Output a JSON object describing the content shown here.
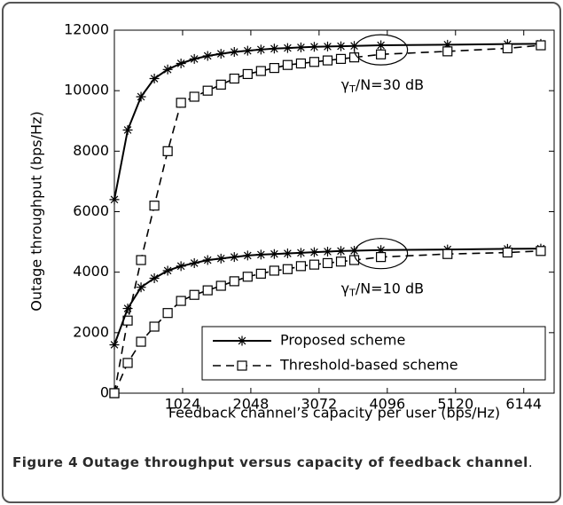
{
  "chart_data": {
    "type": "line",
    "xlabel": "Feedback channel’s capacity per user (bps/Hz)",
    "ylabel": "Outage throughput (bps/Hz)",
    "x": [
      0,
      200,
      400,
      600,
      800,
      1000,
      1200,
      1400,
      1600,
      1800,
      2000,
      2200,
      2400,
      2600,
      2800,
      3000,
      3200,
      3400,
      3600,
      4000,
      5000,
      5900,
      6400
    ],
    "series": [
      {
        "name": "Proposed scheme",
        "color": "#000000",
        "marker": "star",
        "dash": false,
        "values": [
          6400,
          8700,
          9800,
          10400,
          10700,
          10900,
          11050,
          11150,
          11220,
          11280,
          11320,
          11360,
          11390,
          11410,
          11430,
          11450,
          11460,
          11470,
          11480,
          11500,
          11520,
          11540,
          11550
        ]
      },
      {
        "name": "Threshold-based scheme",
        "color": "#000000",
        "marker": "square",
        "dash": true,
        "values": [
          0,
          2400,
          4400,
          6200,
          8000,
          9600,
          9800,
          10000,
          10200,
          10400,
          10550,
          10650,
          10750,
          10850,
          10900,
          10950,
          11000,
          11050,
          11100,
          11200,
          11300,
          11400,
          11500
        ]
      },
      {
        "color": "#000000",
        "marker": "star",
        "dash": false,
        "values": [
          1600,
          2800,
          3500,
          3800,
          4050,
          4200,
          4300,
          4400,
          4450,
          4500,
          4550,
          4580,
          4600,
          4620,
          4640,
          4660,
          4680,
          4700,
          4710,
          4730,
          4750,
          4770,
          4780
        ]
      },
      {
        "color": "#000000",
        "marker": "square",
        "dash": true,
        "values": [
          0,
          1000,
          1700,
          2200,
          2650,
          3050,
          3250,
          3400,
          3550,
          3700,
          3850,
          3950,
          4050,
          4100,
          4200,
          4250,
          4300,
          4350,
          4400,
          4500,
          4600,
          4650,
          4700
        ]
      }
    ],
    "annotations": [
      {
        "symbol": "γ",
        "subscript": "T",
        "text": "/N=30 dB"
      },
      {
        "symbol": "γ",
        "subscript": "T",
        "text": "/N=10 dB"
      }
    ],
    "xlim": [
      0,
      6600
    ],
    "ylim": [
      0,
      12000
    ],
    "xticks": [
      1024,
      2048,
      3072,
      4096,
      5120,
      6144
    ],
    "yticks": [
      0,
      2000,
      4000,
      6000,
      8000,
      10000,
      12000
    ],
    "grid": false,
    "legend": "lower right"
  },
  "caption": {
    "label": "Figure 4",
    "text": "Outage throughput versus capacity of feedback channel",
    "end": "."
  }
}
